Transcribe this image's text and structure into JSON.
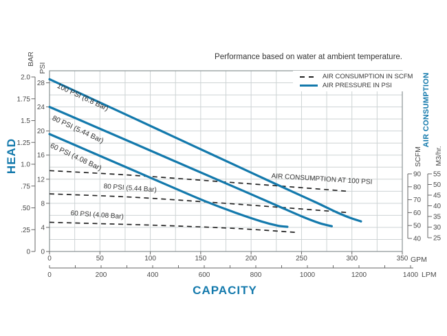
{
  "title": "Performance based on water at ambient temperature.",
  "legend": {
    "items": [
      {
        "label": "AIR CONSUMPTION IN SCFM",
        "style": "dashed-dark"
      },
      {
        "label": "AIR PRESSURE IN PSI",
        "style": "solid-blue"
      }
    ]
  },
  "axes": {
    "head_label": "HEAD",
    "capacity_label": "CAPACITY",
    "air_consumption_label": "AIR CONSUMPTION",
    "bar_title": "BAR",
    "psi_title": "PSI",
    "scfm_title": "SCFM",
    "m3hr_title": "M3/hr.",
    "gpm_unit": "GPM",
    "lpm_unit": "LPM"
  },
  "colors": {
    "accent_blue": "#1379AC",
    "grid": "#CDD3D4",
    "plot_border": "#8A9294",
    "dashed_line": "#222222",
    "tick_text": "#4A4A4A",
    "tick_mark": "#666666"
  },
  "chart_data": {
    "type": "line",
    "title": "Performance based on water at ambient temperature.",
    "grid": true,
    "legend_position": "top-right-inside",
    "x_axis": {
      "label": "CAPACITY",
      "gpm_ticks": [
        "0",
        "50",
        "100",
        "150",
        "200",
        "250",
        "300",
        "350"
      ],
      "gpm_range": [
        0,
        350
      ],
      "gpm_grid_step": 25,
      "lpm_ticks": [
        "0",
        "200",
        "400",
        "600",
        "800",
        "1000",
        "1200",
        "1400"
      ],
      "lpm_range": [
        0,
        1400
      ],
      "lpm_minor_step": 100
    },
    "y_left": {
      "label": "HEAD",
      "bar_ticks": [
        "2.0",
        "1.75",
        "1.5",
        "1.25",
        "1.0",
        ".75",
        ".50",
        ".25",
        "0"
      ],
      "bar_range": [
        0,
        2.0
      ],
      "psi_ticks": [
        "28",
        "24",
        "20",
        "16",
        "12",
        "8",
        "4",
        "0"
      ],
      "psi_range": [
        0,
        30
      ],
      "psi_grid_step": 2
    },
    "y_right": {
      "label": "AIR CONSUMPTION",
      "scfm_ticks": [
        "90",
        "80",
        "70",
        "60",
        "50",
        "40"
      ],
      "m3hr_ticks": [
        "55",
        "50",
        "45",
        "40",
        "35",
        "30",
        "25"
      ]
    },
    "pressure_curves": [
      {
        "label": "100 PSI (6.8 Bar)",
        "points_gpm_psi": [
          [
            0,
            28.6
          ],
          [
            40,
            25.5
          ],
          [
            80,
            22.4
          ],
          [
            120,
            19.3
          ],
          [
            160,
            16.2
          ],
          [
            200,
            13.1
          ],
          [
            240,
            10.0
          ],
          [
            265,
            8.1
          ],
          [
            285,
            6.5
          ],
          [
            298,
            5.6
          ],
          [
            309,
            5.0
          ]
        ]
      },
      {
        "label": "80 PSI (5.44 Bar)",
        "points_gpm_psi": [
          [
            0,
            24.0
          ],
          [
            40,
            21.1
          ],
          [
            80,
            18.2
          ],
          [
            120,
            15.3
          ],
          [
            160,
            12.4
          ],
          [
            200,
            9.5
          ],
          [
            230,
            7.3
          ],
          [
            252,
            5.7
          ],
          [
            268,
            4.7
          ],
          [
            280,
            4.2
          ]
        ]
      },
      {
        "label": "60 PSI (4.08 Bar)",
        "points_gpm_psi": [
          [
            0,
            19.5
          ],
          [
            40,
            16.6
          ],
          [
            80,
            13.7
          ],
          [
            120,
            10.8
          ],
          [
            155,
            8.3
          ],
          [
            185,
            6.4
          ],
          [
            210,
            5.0
          ],
          [
            226,
            4.3
          ],
          [
            236,
            4.1
          ]
        ]
      }
    ],
    "consumption_curves": [
      {
        "label": "AIR CONSUMPTION AT 100 PSI",
        "points_gpm_scfm": [
          [
            0,
            92.5
          ],
          [
            80,
            89.0
          ],
          [
            160,
            84.5
          ],
          [
            230,
            80.5
          ],
          [
            296,
            76.5
          ]
        ]
      },
      {
        "label": "80 PSI (5.44 Bar)",
        "points_gpm_scfm": [
          [
            0,
            74.5
          ],
          [
            80,
            72.0
          ],
          [
            160,
            68.0
          ],
          [
            230,
            64.0
          ],
          [
            296,
            60.0
          ]
        ]
      },
      {
        "label": "60 PSI (4.08 Bar)",
        "points_gpm_scfm": [
          [
            0,
            52.5
          ],
          [
            70,
            51.0
          ],
          [
            130,
            49.5
          ],
          [
            190,
            47.5
          ],
          [
            247,
            44.5
          ]
        ]
      }
    ]
  }
}
